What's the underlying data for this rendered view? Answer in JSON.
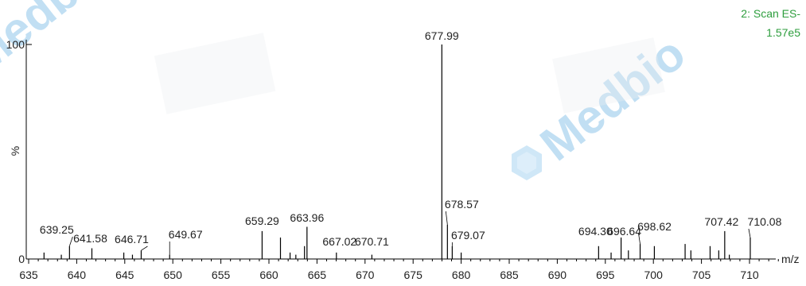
{
  "chart_data": {
    "type": "bar",
    "title": "",
    "xlabel": "m/z",
    "ylabel": "%",
    "xlim": [
      635,
      713
    ],
    "ylim": [
      0,
      100
    ],
    "x_ticks": [
      635,
      640,
      645,
      650,
      655,
      660,
      665,
      670,
      675,
      680,
      685,
      690,
      695,
      700,
      705,
      710
    ],
    "y_ticks": [
      0,
      100
    ],
    "y_axis_title": "%",
    "scan_info": [
      "2: Scan ES-",
      "1.57e5"
    ],
    "grid": false,
    "legend": "none",
    "peaks": [
      {
        "mz": 636.6,
        "intensity": 3
      },
      {
        "mz": 638.4,
        "intensity": 2
      },
      {
        "mz": 639.25,
        "intensity": 6,
        "label": "639.25"
      },
      {
        "mz": 641.58,
        "intensity": 5,
        "label": "641.58"
      },
      {
        "mz": 644.9,
        "intensity": 3
      },
      {
        "mz": 645.8,
        "intensity": 2
      },
      {
        "mz": 646.71,
        "intensity": 4,
        "label": "646.71"
      },
      {
        "mz": 649.67,
        "intensity": 2,
        "label": "649.67"
      },
      {
        "mz": 659.29,
        "intensity": 13,
        "label": "659.29"
      },
      {
        "mz": 661.2,
        "intensity": 10
      },
      {
        "mz": 662.2,
        "intensity": 3
      },
      {
        "mz": 662.8,
        "intensity": 2
      },
      {
        "mz": 663.7,
        "intensity": 6
      },
      {
        "mz": 663.96,
        "intensity": 15,
        "label": "663.96"
      },
      {
        "mz": 667.02,
        "intensity": 3,
        "label": "667.02"
      },
      {
        "mz": 670.71,
        "intensity": 2,
        "label": "670.71"
      },
      {
        "mz": 677.99,
        "intensity": 100,
        "label": "677.99"
      },
      {
        "mz": 678.57,
        "intensity": 16,
        "label": "678.57"
      },
      {
        "mz": 679.07,
        "intensity": 6,
        "label": "679.07"
      },
      {
        "mz": 680.0,
        "intensity": 3
      },
      {
        "mz": 694.3,
        "intensity": 6,
        "label": "694.30"
      },
      {
        "mz": 695.6,
        "intensity": 3
      },
      {
        "mz": 696.64,
        "intensity": 10,
        "label": "696.64"
      },
      {
        "mz": 697.4,
        "intensity": 4
      },
      {
        "mz": 698.62,
        "intensity": 7,
        "label": "698.62"
      },
      {
        "mz": 700.1,
        "intensity": 6
      },
      {
        "mz": 703.3,
        "intensity": 7
      },
      {
        "mz": 703.9,
        "intensity": 4
      },
      {
        "mz": 705.9,
        "intensity": 6
      },
      {
        "mz": 706.8,
        "intensity": 4
      },
      {
        "mz": 707.42,
        "intensity": 13,
        "label": "707.42"
      },
      {
        "mz": 707.9,
        "intensity": 2
      },
      {
        "mz": 710.08,
        "intensity": 10,
        "label": "710.08"
      }
    ]
  },
  "watermark": {
    "text": "Medbio",
    "color": "#8fc6ea"
  },
  "colors": {
    "axis": "#000000",
    "peak": "#000000",
    "scan_info": "#2e9e3e"
  }
}
